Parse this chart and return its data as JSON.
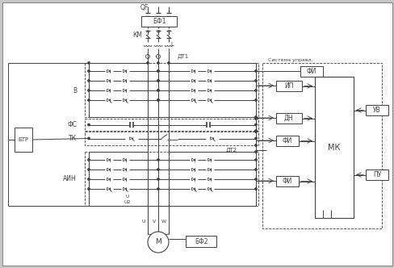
{
  "bg_color": "#c8c8c8",
  "line_color": "#404040",
  "labels": {
    "QF": "QF",
    "BF1": "БФ1",
    "A": "A",
    "B_lbl": "B",
    "C": "C",
    "KM": "КМ",
    "L": "L",
    "DT1": "ДТ1",
    "V": "В",
    "FC": "ФС",
    "TK": "ТК",
    "BTR": "БТР",
    "AIN": "АИН",
    "U_lbl": "U",
    "U2_lbl": "U2",
    "DT2": "ДТ2",
    "FI1": "ФИ",
    "IP": "ИП",
    "DN": "ДН",
    "FI2": "ФИ",
    "MK": "МК",
    "FI3": "ФИ",
    "UV": "УВ",
    "PU": "ПУ",
    "BF2": "БФ2",
    "M": "М",
    "U_motor": "U",
    "V_motor": "V",
    "W_motor": "W",
    "Sistema": "Система управл."
  }
}
